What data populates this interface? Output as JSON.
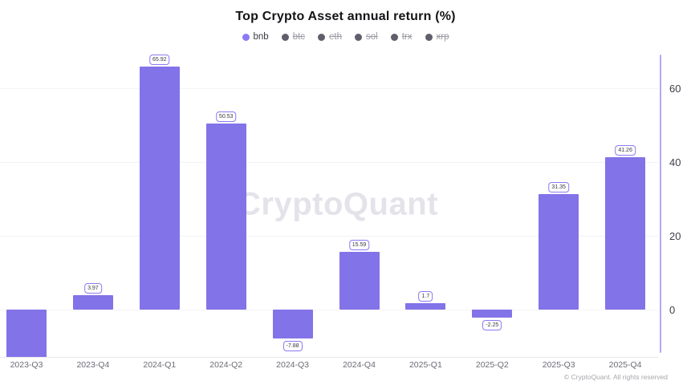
{
  "title": "Top Crypto Asset annual return (%)",
  "watermark": "CryptoQuant",
  "footer": "© CryptoQuant. All rights reserved",
  "legend": {
    "items": [
      {
        "label": "bnb",
        "active": true
      },
      {
        "label": "btc",
        "active": false
      },
      {
        "label": "eth",
        "active": false
      },
      {
        "label": "sol",
        "active": false
      },
      {
        "label": "trx",
        "active": false
      },
      {
        "label": "xrp",
        "active": false
      }
    ]
  },
  "colors": {
    "bar": "#8273e8",
    "active_dot": "#8b7af5",
    "inactive_dot": "#5f5e6a",
    "axis_line": "#b5a8f6",
    "value_label_border": "#8b7af2"
  },
  "chart_data": {
    "type": "bar",
    "title": "Top Crypto Asset annual return (%)",
    "series_name": "bnb",
    "categories": [
      "2023-Q3",
      "2023-Q4",
      "2024-Q1",
      "2024-Q2",
      "2024-Q3",
      "2024-Q4",
      "2025-Q1",
      "2025-Q2",
      "2025-Q3",
      "2025-Q4"
    ],
    "values": [
      -13,
      3.97,
      65.92,
      50.53,
      -7.88,
      15.59,
      1.7,
      -2.25,
      31.35,
      41.26
    ],
    "value_labels": [
      "",
      "3.97",
      "65.92",
      "50.53",
      "-7.88",
      "15.59",
      "1.7",
      "-2.25",
      "31.35",
      "41.26"
    ],
    "xlabel": "",
    "ylabel": "",
    "yticks": [
      0,
      20,
      40,
      60
    ],
    "ylim": [
      -13,
      70
    ],
    "grid": true,
    "legend_position": "top",
    "y_axis_side": "right"
  }
}
